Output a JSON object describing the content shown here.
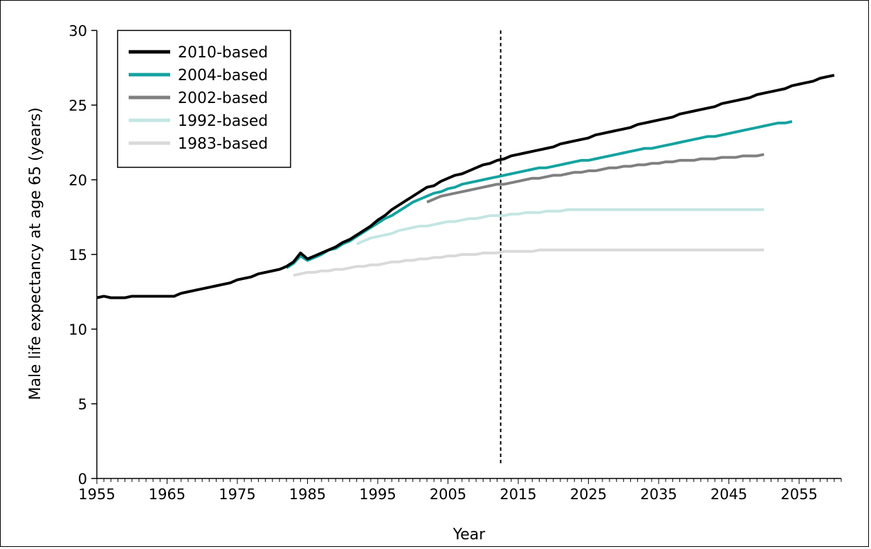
{
  "chart_data": {
    "type": "line",
    "title": "",
    "xlabel": "Year",
    "ylabel": "Male life expectancy at age 65 (years)",
    "xlim": [
      1955,
      2061
    ],
    "ylim": [
      0,
      30
    ],
    "xticks": [
      1955,
      1965,
      1975,
      1985,
      1995,
      2005,
      2015,
      2025,
      2035,
      2045,
      2055
    ],
    "yticks": [
      0,
      5,
      10,
      15,
      20,
      25,
      30
    ],
    "grid": false,
    "legend_position": "top-left",
    "reference_line": {
      "x": 2012.5,
      "style": "dashed",
      "color": "#000000"
    },
    "series": [
      {
        "name": "2010-based",
        "color": "#000000",
        "width": 4,
        "points": [
          [
            1955,
            12.1
          ],
          [
            1956,
            12.2
          ],
          [
            1957,
            12.1
          ],
          [
            1958,
            12.1
          ],
          [
            1959,
            12.1
          ],
          [
            1960,
            12.2
          ],
          [
            1961,
            12.2
          ],
          [
            1962,
            12.2
          ],
          [
            1963,
            12.2
          ],
          [
            1964,
            12.2
          ],
          [
            1965,
            12.2
          ],
          [
            1966,
            12.2
          ],
          [
            1967,
            12.4
          ],
          [
            1968,
            12.5
          ],
          [
            1969,
            12.6
          ],
          [
            1970,
            12.7
          ],
          [
            1971,
            12.8
          ],
          [
            1972,
            12.9
          ],
          [
            1973,
            13.0
          ],
          [
            1974,
            13.1
          ],
          [
            1975,
            13.3
          ],
          [
            1976,
            13.4
          ],
          [
            1977,
            13.5
          ],
          [
            1978,
            13.7
          ],
          [
            1979,
            13.8
          ],
          [
            1980,
            13.9
          ],
          [
            1981,
            14.0
          ],
          [
            1982,
            14.2
          ],
          [
            1983,
            14.5
          ],
          [
            1984,
            15.1
          ],
          [
            1985,
            14.7
          ],
          [
            1986,
            14.9
          ],
          [
            1987,
            15.1
          ],
          [
            1988,
            15.3
          ],
          [
            1989,
            15.5
          ],
          [
            1990,
            15.8
          ],
          [
            1991,
            16.0
          ],
          [
            1992,
            16.3
          ],
          [
            1993,
            16.6
          ],
          [
            1994,
            16.9
          ],
          [
            1995,
            17.3
          ],
          [
            1996,
            17.6
          ],
          [
            1997,
            18.0
          ],
          [
            1998,
            18.3
          ],
          [
            1999,
            18.6
          ],
          [
            2000,
            18.9
          ],
          [
            2001,
            19.2
          ],
          [
            2002,
            19.5
          ],
          [
            2003,
            19.6
          ],
          [
            2004,
            19.9
          ],
          [
            2005,
            20.1
          ],
          [
            2006,
            20.3
          ],
          [
            2007,
            20.4
          ],
          [
            2008,
            20.6
          ],
          [
            2009,
            20.8
          ],
          [
            2010,
            21.0
          ],
          [
            2011,
            21.1
          ],
          [
            2012,
            21.3
          ],
          [
            2013,
            21.4
          ],
          [
            2014,
            21.6
          ],
          [
            2015,
            21.7
          ],
          [
            2016,
            21.8
          ],
          [
            2017,
            21.9
          ],
          [
            2018,
            22.0
          ],
          [
            2019,
            22.1
          ],
          [
            2020,
            22.2
          ],
          [
            2021,
            22.4
          ],
          [
            2022,
            22.5
          ],
          [
            2023,
            22.6
          ],
          [
            2024,
            22.7
          ],
          [
            2025,
            22.8
          ],
          [
            2026,
            23.0
          ],
          [
            2027,
            23.1
          ],
          [
            2028,
            23.2
          ],
          [
            2029,
            23.3
          ],
          [
            2030,
            23.4
          ],
          [
            2031,
            23.5
          ],
          [
            2032,
            23.7
          ],
          [
            2033,
            23.8
          ],
          [
            2034,
            23.9
          ],
          [
            2035,
            24.0
          ],
          [
            2036,
            24.1
          ],
          [
            2037,
            24.2
          ],
          [
            2038,
            24.4
          ],
          [
            2039,
            24.5
          ],
          [
            2040,
            24.6
          ],
          [
            2041,
            24.7
          ],
          [
            2042,
            24.8
          ],
          [
            2043,
            24.9
          ],
          [
            2044,
            25.1
          ],
          [
            2045,
            25.2
          ],
          [
            2046,
            25.3
          ],
          [
            2047,
            25.4
          ],
          [
            2048,
            25.5
          ],
          [
            2049,
            25.7
          ],
          [
            2050,
            25.8
          ],
          [
            2051,
            25.9
          ],
          [
            2052,
            26.0
          ],
          [
            2053,
            26.1
          ],
          [
            2054,
            26.3
          ],
          [
            2055,
            26.4
          ],
          [
            2056,
            26.5
          ],
          [
            2057,
            26.6
          ],
          [
            2058,
            26.8
          ],
          [
            2059,
            26.9
          ],
          [
            2060,
            27.0
          ]
        ]
      },
      {
        "name": "2004-based",
        "color": "#14a3a0",
        "width": 4,
        "points": [
          [
            1982,
            14.1
          ],
          [
            1983,
            14.4
          ],
          [
            1984,
            14.9
          ],
          [
            1985,
            14.6
          ],
          [
            1986,
            14.8
          ],
          [
            1987,
            15.0
          ],
          [
            1988,
            15.3
          ],
          [
            1989,
            15.4
          ],
          [
            1990,
            15.7
          ],
          [
            1991,
            15.9
          ],
          [
            1992,
            16.2
          ],
          [
            1993,
            16.5
          ],
          [
            1994,
            16.8
          ],
          [
            1995,
            17.1
          ],
          [
            1996,
            17.4
          ],
          [
            1997,
            17.6
          ],
          [
            1998,
            17.9
          ],
          [
            1999,
            18.2
          ],
          [
            2000,
            18.5
          ],
          [
            2001,
            18.7
          ],
          [
            2002,
            18.9
          ],
          [
            2003,
            19.1
          ],
          [
            2004,
            19.2
          ],
          [
            2005,
            19.4
          ],
          [
            2006,
            19.5
          ],
          [
            2007,
            19.7
          ],
          [
            2008,
            19.8
          ],
          [
            2009,
            19.9
          ],
          [
            2010,
            20.0
          ],
          [
            2011,
            20.1
          ],
          [
            2012,
            20.2
          ],
          [
            2013,
            20.3
          ],
          [
            2014,
            20.4
          ],
          [
            2015,
            20.5
          ],
          [
            2016,
            20.6
          ],
          [
            2017,
            20.7
          ],
          [
            2018,
            20.8
          ],
          [
            2019,
            20.8
          ],
          [
            2020,
            20.9
          ],
          [
            2021,
            21.0
          ],
          [
            2022,
            21.1
          ],
          [
            2023,
            21.2
          ],
          [
            2024,
            21.3
          ],
          [
            2025,
            21.3
          ],
          [
            2026,
            21.4
          ],
          [
            2027,
            21.5
          ],
          [
            2028,
            21.6
          ],
          [
            2029,
            21.7
          ],
          [
            2030,
            21.8
          ],
          [
            2031,
            21.9
          ],
          [
            2032,
            22.0
          ],
          [
            2033,
            22.1
          ],
          [
            2034,
            22.1
          ],
          [
            2035,
            22.2
          ],
          [
            2036,
            22.3
          ],
          [
            2037,
            22.4
          ],
          [
            2038,
            22.5
          ],
          [
            2039,
            22.6
          ],
          [
            2040,
            22.7
          ],
          [
            2041,
            22.8
          ],
          [
            2042,
            22.9
          ],
          [
            2043,
            22.9
          ],
          [
            2044,
            23.0
          ],
          [
            2045,
            23.1
          ],
          [
            2046,
            23.2
          ],
          [
            2047,
            23.3
          ],
          [
            2048,
            23.4
          ],
          [
            2049,
            23.5
          ],
          [
            2050,
            23.6
          ],
          [
            2051,
            23.7
          ],
          [
            2052,
            23.8
          ],
          [
            2053,
            23.8
          ],
          [
            2054,
            23.9
          ]
        ]
      },
      {
        "name": "2002-based",
        "color": "#808080",
        "width": 4,
        "points": [
          [
            2002,
            18.5
          ],
          [
            2003,
            18.7
          ],
          [
            2004,
            18.9
          ],
          [
            2005,
            19.0
          ],
          [
            2006,
            19.1
          ],
          [
            2007,
            19.2
          ],
          [
            2008,
            19.3
          ],
          [
            2009,
            19.4
          ],
          [
            2010,
            19.5
          ],
          [
            2011,
            19.6
          ],
          [
            2012,
            19.7
          ],
          [
            2013,
            19.7
          ],
          [
            2014,
            19.8
          ],
          [
            2015,
            19.9
          ],
          [
            2016,
            20.0
          ],
          [
            2017,
            20.1
          ],
          [
            2018,
            20.1
          ],
          [
            2019,
            20.2
          ],
          [
            2020,
            20.3
          ],
          [
            2021,
            20.3
          ],
          [
            2022,
            20.4
          ],
          [
            2023,
            20.5
          ],
          [
            2024,
            20.5
          ],
          [
            2025,
            20.6
          ],
          [
            2026,
            20.6
          ],
          [
            2027,
            20.7
          ],
          [
            2028,
            20.8
          ],
          [
            2029,
            20.8
          ],
          [
            2030,
            20.9
          ],
          [
            2031,
            20.9
          ],
          [
            2032,
            21.0
          ],
          [
            2033,
            21.0
          ],
          [
            2034,
            21.1
          ],
          [
            2035,
            21.1
          ],
          [
            2036,
            21.2
          ],
          [
            2037,
            21.2
          ],
          [
            2038,
            21.3
          ],
          [
            2039,
            21.3
          ],
          [
            2040,
            21.3
          ],
          [
            2041,
            21.4
          ],
          [
            2042,
            21.4
          ],
          [
            2043,
            21.4
          ],
          [
            2044,
            21.5
          ],
          [
            2045,
            21.5
          ],
          [
            2046,
            21.5
          ],
          [
            2047,
            21.6
          ],
          [
            2048,
            21.6
          ],
          [
            2049,
            21.6
          ],
          [
            2050,
            21.7
          ]
        ]
      },
      {
        "name": "1992-based",
        "color": "#c3e6e3",
        "width": 4,
        "points": [
          [
            1992,
            15.7
          ],
          [
            1993,
            15.9
          ],
          [
            1994,
            16.1
          ],
          [
            1995,
            16.2
          ],
          [
            1996,
            16.3
          ],
          [
            1997,
            16.4
          ],
          [
            1998,
            16.6
          ],
          [
            1999,
            16.7
          ],
          [
            2000,
            16.8
          ],
          [
            2001,
            16.9
          ],
          [
            2002,
            16.9
          ],
          [
            2003,
            17.0
          ],
          [
            2004,
            17.1
          ],
          [
            2005,
            17.2
          ],
          [
            2006,
            17.2
          ],
          [
            2007,
            17.3
          ],
          [
            2008,
            17.4
          ],
          [
            2009,
            17.4
          ],
          [
            2010,
            17.5
          ],
          [
            2011,
            17.6
          ],
          [
            2012,
            17.6
          ],
          [
            2013,
            17.6
          ],
          [
            2014,
            17.7
          ],
          [
            2015,
            17.7
          ],
          [
            2016,
            17.8
          ],
          [
            2017,
            17.8
          ],
          [
            2018,
            17.8
          ],
          [
            2019,
            17.9
          ],
          [
            2020,
            17.9
          ],
          [
            2021,
            17.9
          ],
          [
            2022,
            18.0
          ],
          [
            2023,
            18.0
          ],
          [
            2030,
            18.0
          ],
          [
            2040,
            18.0
          ],
          [
            2050,
            18.0
          ]
        ]
      },
      {
        "name": "1983-based",
        "color": "#d9d9d9",
        "width": 4,
        "points": [
          [
            1983,
            13.6
          ],
          [
            1984,
            13.7
          ],
          [
            1985,
            13.8
          ],
          [
            1986,
            13.8
          ],
          [
            1987,
            13.9
          ],
          [
            1988,
            13.9
          ],
          [
            1989,
            14.0
          ],
          [
            1990,
            14.0
          ],
          [
            1991,
            14.1
          ],
          [
            1992,
            14.2
          ],
          [
            1993,
            14.2
          ],
          [
            1994,
            14.3
          ],
          [
            1995,
            14.3
          ],
          [
            1996,
            14.4
          ],
          [
            1997,
            14.5
          ],
          [
            1998,
            14.5
          ],
          [
            1999,
            14.6
          ],
          [
            2000,
            14.6
          ],
          [
            2001,
            14.7
          ],
          [
            2002,
            14.7
          ],
          [
            2003,
            14.8
          ],
          [
            2004,
            14.8
          ],
          [
            2005,
            14.9
          ],
          [
            2006,
            14.9
          ],
          [
            2007,
            15.0
          ],
          [
            2008,
            15.0
          ],
          [
            2009,
            15.0
          ],
          [
            2010,
            15.1
          ],
          [
            2011,
            15.1
          ],
          [
            2012,
            15.1
          ],
          [
            2013,
            15.2
          ],
          [
            2014,
            15.2
          ],
          [
            2015,
            15.2
          ],
          [
            2016,
            15.2
          ],
          [
            2017,
            15.2
          ],
          [
            2018,
            15.3
          ],
          [
            2019,
            15.3
          ],
          [
            2030,
            15.3
          ],
          [
            2040,
            15.3
          ],
          [
            2050,
            15.3
          ]
        ]
      }
    ]
  }
}
